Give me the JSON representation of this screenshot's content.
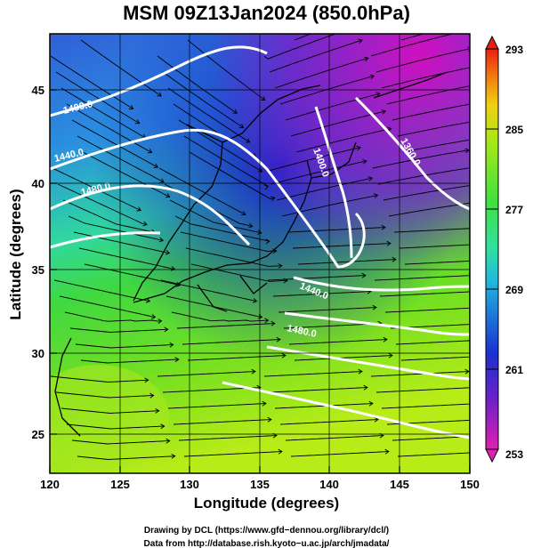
{
  "title": "MSM 09Z13Jan2024 (850.0hPa)",
  "axes": {
    "xlabel": "Longitude (degrees)",
    "ylabel": "Latitude  (degrees)",
    "x_ticks": [
      "120",
      "125",
      "130",
      "135",
      "140",
      "145",
      "150"
    ],
    "y_ticks": [
      "25",
      "30",
      "35",
      "40",
      "45"
    ]
  },
  "colorbar": {
    "ticks": [
      "293",
      "285",
      "277",
      "269",
      "261",
      "253"
    ],
    "palette": [
      "#cf10b8",
      "#1e20c8",
      "#1d80d8",
      "#26d6c8",
      "#3de030",
      "#c2ec10",
      "#f2b610",
      "#e82010"
    ]
  },
  "contours": {
    "labels": [
      "1400.0",
      "1440.0",
      "1480.0",
      "1360.0",
      "1400.0",
      "1440.0",
      "1480.0"
    ]
  },
  "credits": {
    "line1": "Drawing by DCL (https://www.gfd−dennou.org/library/dcl/)",
    "line2": "Data from http://database.rish.kyoto−u.ac.jp/arch/jmadata/"
  }
}
